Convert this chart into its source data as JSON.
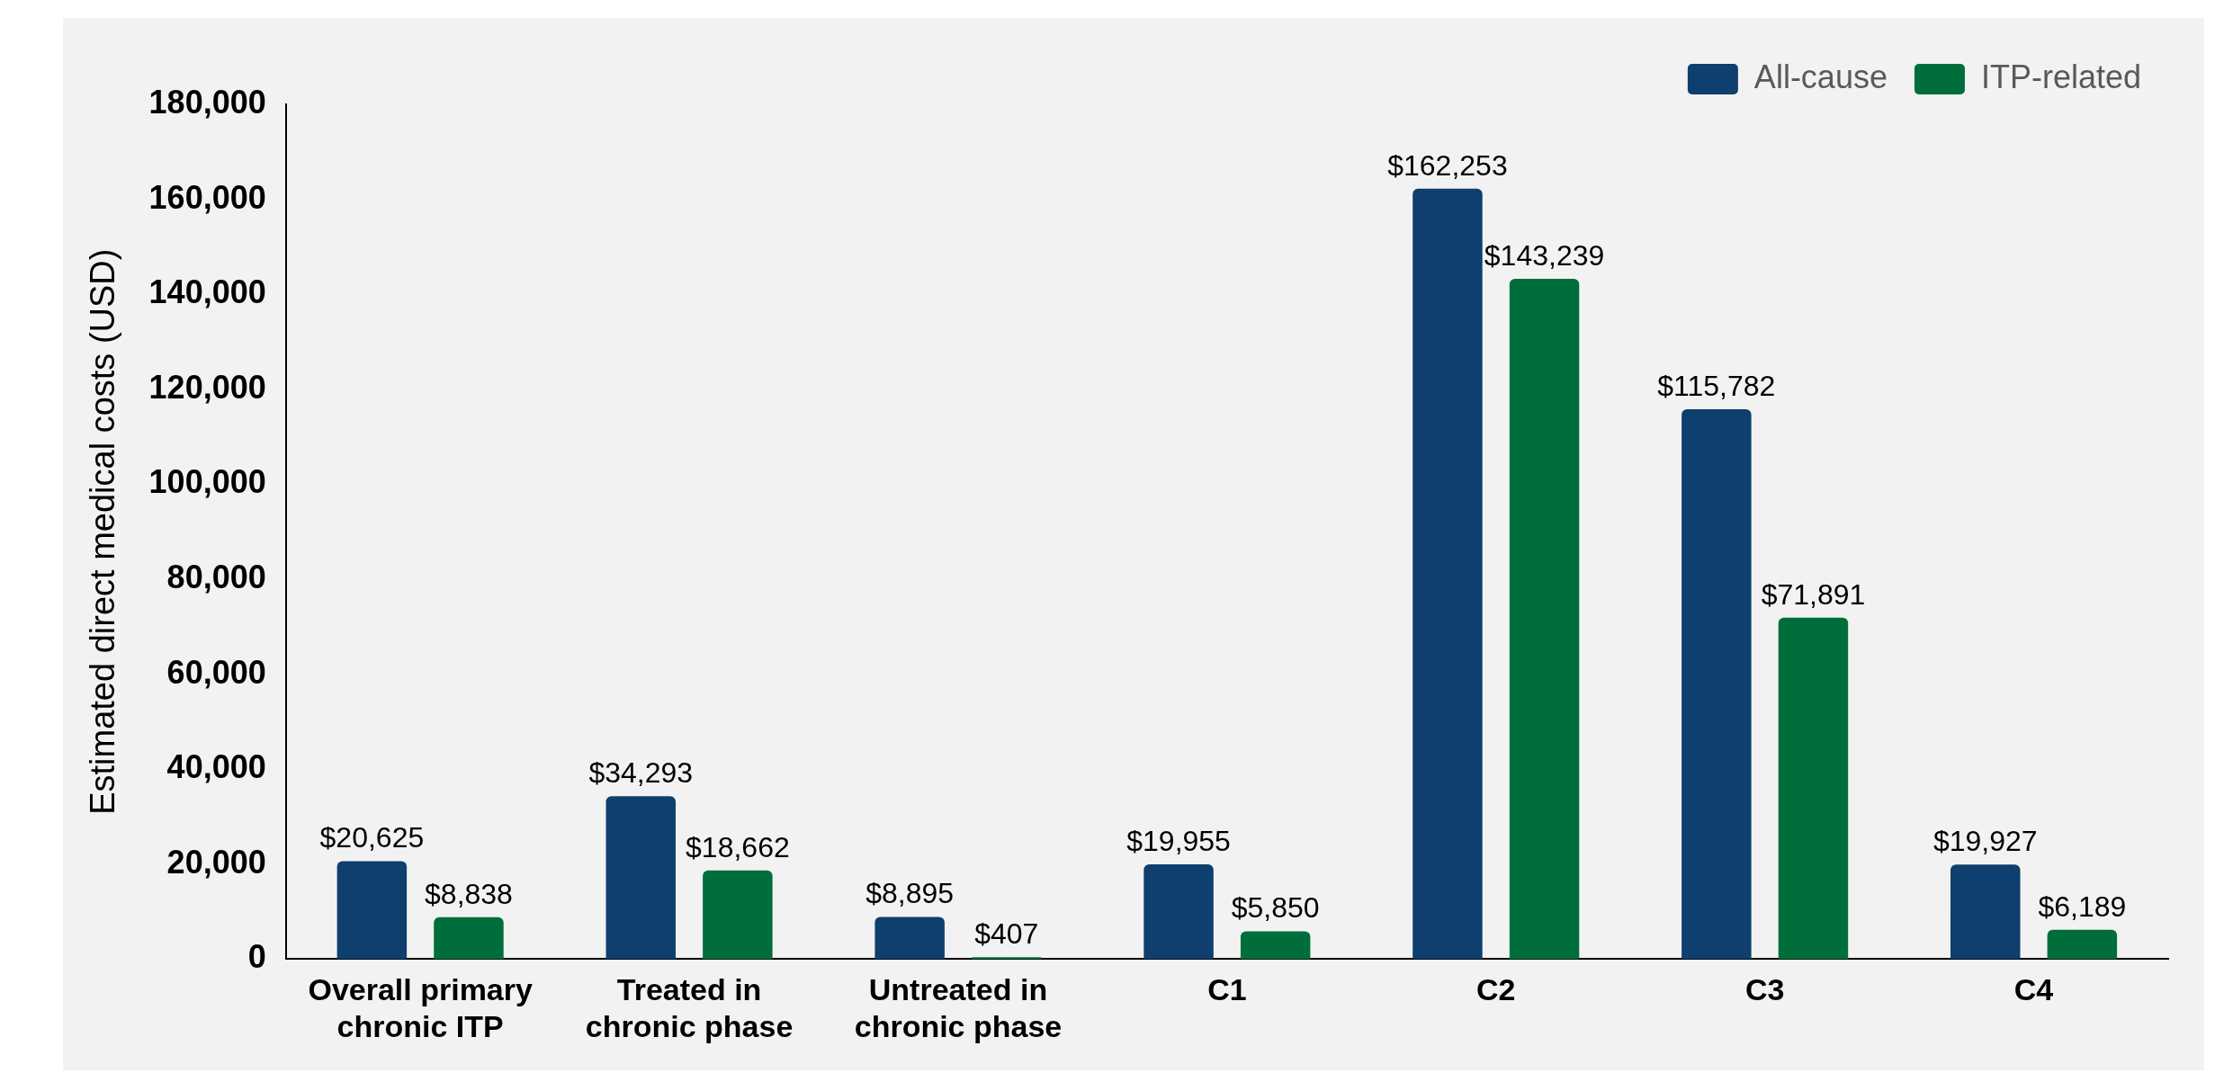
{
  "chart_data": {
    "type": "bar",
    "ylabel": "Estimated direct medical costs (USD)",
    "categories": [
      "Overall primary chronic ITP",
      "Treated in chronic phase",
      "Untreated in chronic phase",
      "C1",
      "C2",
      "C3",
      "C4"
    ],
    "series": [
      {
        "name": "All-cause",
        "color": "#0e3f6e",
        "values": [
          20625,
          34293,
          8895,
          19955,
          162253,
          115782,
          19927
        ],
        "value_labels": [
          "$20,625",
          "$34,293",
          "$8,895",
          "$19,955",
          "$162,253",
          "$115,782",
          "$19,927"
        ]
      },
      {
        "name": "ITP-related",
        "color": "#006e3b",
        "values": [
          8838,
          18662,
          407,
          5850,
          143239,
          71891,
          6189
        ],
        "value_labels": [
          "$8,838",
          "$18,662",
          "$407",
          "$5,850",
          "$143,239",
          "$71,891",
          "$6,189"
        ]
      }
    ],
    "ylim": [
      0,
      180000
    ],
    "yticks": [
      0,
      {
        "value": 20000,
        "label": "20,000"
      },
      {
        "value": 40000,
        "label": "40,000"
      },
      {
        "value": 60000,
        "label": "60,000"
      },
      {
        "value": 80000,
        "label": "80,000"
      },
      {
        "value": 100000,
        "label": "100,000"
      },
      {
        "value": 120000,
        "label": "120,000"
      },
      {
        "value": 140000,
        "label": "140,000"
      },
      {
        "value": 160000,
        "label": "160,000"
      },
      {
        "value": 180000,
        "label": "180,000"
      }
    ],
    "grid": false,
    "legend": "top right"
  }
}
